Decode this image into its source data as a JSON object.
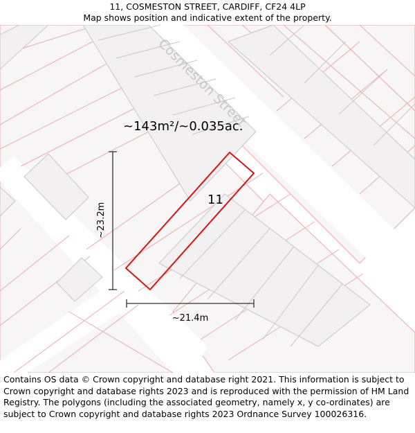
{
  "header": {
    "address": "11, COSMESTON STREET, CARDIFF, CF24 4LP",
    "subtitle": "Map shows position and indicative extent of the property."
  },
  "map": {
    "street_name": "Cosmeston Street",
    "plot_number": "11",
    "area_label": "~143m²/~0.035ac.",
    "width_label": "~21.4m",
    "height_label": "~23.2m",
    "colors": {
      "background": "#ffffff",
      "road": "#ffffff",
      "block": "#f7f5f5",
      "building_fill": "#f2f0f0",
      "building_stroke": "#c8c8c8",
      "parcel_line": "#f2a9a9",
      "property_outline": "#e01010",
      "measure_line": "#333333",
      "street_label": "#c7c7c7"
    }
  },
  "footer": {
    "copyright": "Contains OS data © Crown copyright and database right 2021. This information is subject to Crown copyright and database rights 2023 and is reproduced with the permission of HM Land Registry. The polygons (including the associated geometry, namely x, y co-ordinates) are subject to Crown copyright and database rights 2023 Ordnance Survey 100026316."
  }
}
